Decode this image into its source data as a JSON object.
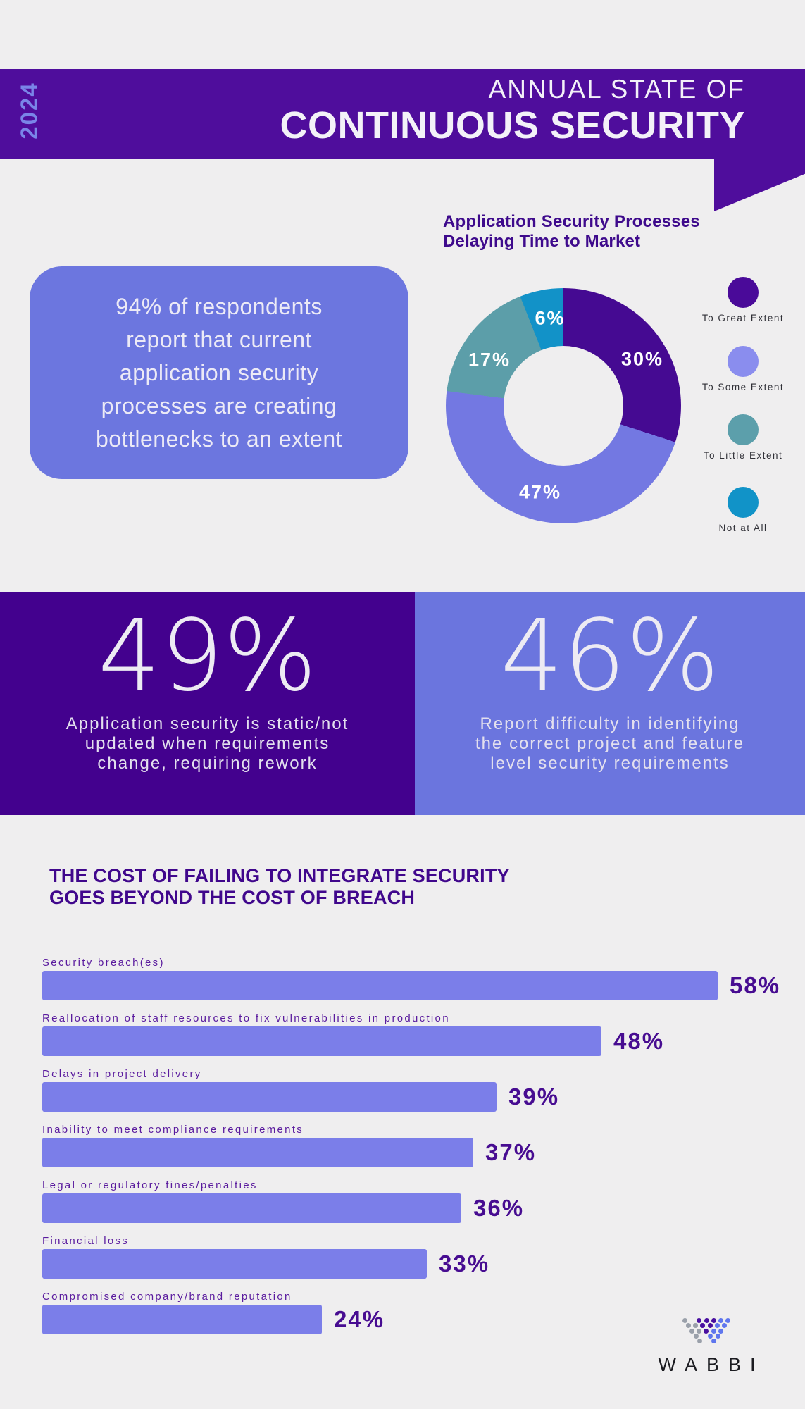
{
  "header": {
    "year": "2024",
    "title_line1": "ANNUAL STATE OF",
    "title_line2": "CONTINUOUS SECURITY"
  },
  "callout": {
    "text": "94% of respondents\nreport that current\napplication security\nprocesses are creating\nbottlenecks to an extent"
  },
  "chart_data": [
    {
      "type": "donut",
      "title": "Application Security Processes Delaying Time to Market",
      "title_display": "Application Security Processes\nDelaying Time to Market",
      "labels": [
        "To Great Extent",
        "To Some Extent",
        "To Little Extent",
        "Not at All"
      ],
      "values": [
        30,
        47,
        17,
        6
      ],
      "value_labels": [
        "30%",
        "47%",
        "17%",
        "6%"
      ],
      "colors": [
        "#450A92",
        "#7378E2",
        "#5C9EA9",
        "#1292C8"
      ],
      "legend_colors": [
        "#4A0A99",
        "#8A8DEE",
        "#5C9FAB",
        "#1193C8"
      ],
      "legend_position": "right"
    },
    {
      "type": "bar",
      "orientation": "horizontal",
      "title": "THE COST OF FAILING TO INTEGRATE SECURITY GOES BEYOND THE COST OF BREACH",
      "title_display": "THE COST OF FAILING TO INTEGRATE SECURITY\nGOES BEYOND THE COST OF BREACH",
      "categories": [
        "Security breach(es)",
        "Reallocation of staff resources to fix vulnerabilities in production",
        "Delays in project delivery",
        "Inability to meet compliance requirements",
        "Legal or regulatory fines/penalties",
        "Financial loss",
        "Compromised company/brand reputation"
      ],
      "values": [
        58,
        48,
        39,
        37,
        36,
        33,
        24
      ],
      "values_display": [
        "58%",
        "48%",
        "39%",
        "37%",
        "36%",
        "33%",
        "24%"
      ],
      "bar_color": "#7B7EE9",
      "xlim": [
        0,
        100
      ],
      "grid": false
    }
  ],
  "stats": [
    {
      "value": "49%",
      "caption": "Application security is static/not\nupdated when requirements\nchange, requiring rework",
      "bg": "#43018E"
    },
    {
      "value": "46%",
      "caption": "Report difficulty in identifying\nthe correct project and feature\nlevel security requirements",
      "bg": "#6B75DE"
    }
  ],
  "logo": {
    "text": "WABBI",
    "dot_colors": {
      "gray": "#9AA0AA",
      "purple": "#4A10A0",
      "blue": "#5F76EE"
    },
    "mark_rows": [
      {
        "offset": 0,
        "dots": [
          "gray",
          null,
          "purple",
          "purple",
          "purple",
          "blue",
          "blue"
        ]
      },
      {
        "offset": 5,
        "dots": [
          "gray",
          "gray",
          "purple",
          "purple",
          "blue",
          "blue"
        ]
      },
      {
        "offset": 10,
        "dots": [
          "gray",
          "gray",
          "purple",
          "blue",
          "blue"
        ]
      },
      {
        "offset": 16,
        "dots": [
          "gray",
          null,
          "blue",
          "blue"
        ]
      },
      {
        "offset": 21,
        "dots": [
          "gray",
          null,
          "blue"
        ]
      }
    ]
  },
  "colors": {
    "background": "#EFEEEF",
    "banner_purple": "#4F0D9C",
    "accent_periwinkle": "#6C76DF",
    "accent_dark_purple": "#43018E",
    "teal": "#5C9EA9",
    "cyan": "#1292C8",
    "heading_text": "#3E0A8C",
    "bar_label_text": "#5A1B9E",
    "percent_text": "#470C91",
    "year_text": "#7A85E8"
  }
}
